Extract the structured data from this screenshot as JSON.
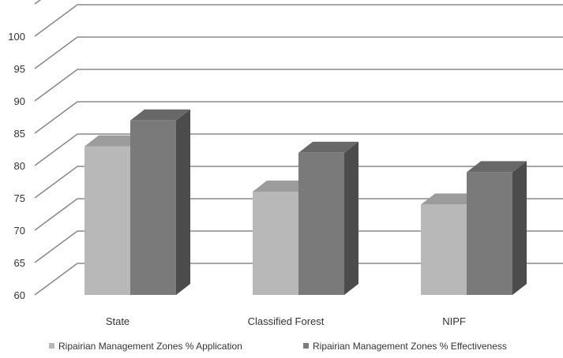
{
  "chart_data": {
    "type": "bar",
    "title": "",
    "xlabel": "",
    "ylabel": "",
    "categories": [
      "State",
      "Classified Forest",
      "NIPF"
    ],
    "series": [
      {
        "name": "Ripairian Management Zones % Application",
        "values": [
          82,
          75,
          73
        ],
        "color": "#b8b8b8"
      },
      {
        "name": "Ripairian Management Zones % Effectiveness",
        "values": [
          86,
          81,
          78
        ],
        "color": "#7a7a7a"
      }
    ],
    "ylim": [
      60,
      100
    ],
    "yticks": [
      60,
      65,
      70,
      75,
      80,
      85,
      90,
      95,
      100
    ],
    "grid": true,
    "legend_position": "bottom",
    "three_d": true
  }
}
